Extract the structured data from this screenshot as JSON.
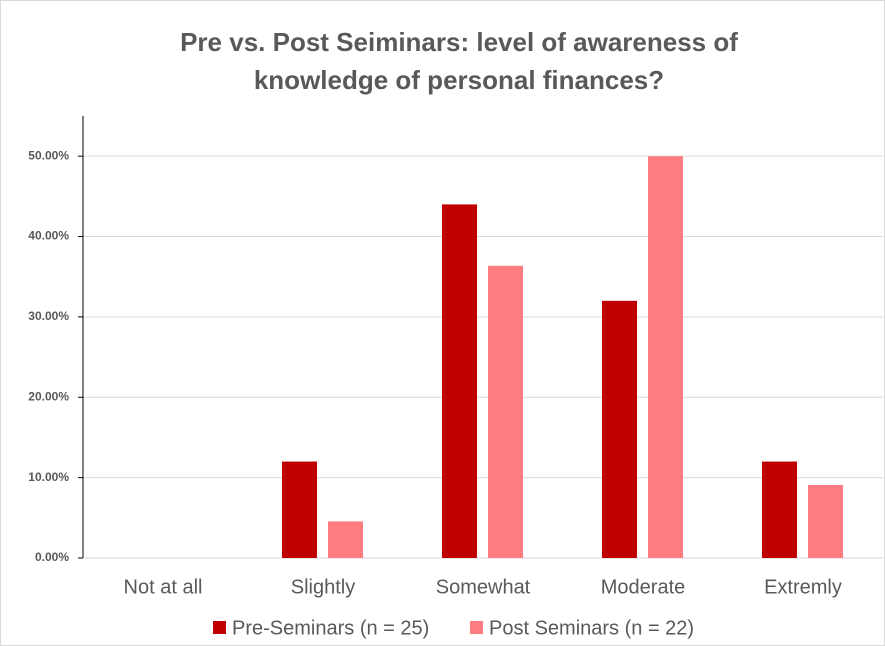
{
  "chart_data": {
    "type": "bar",
    "title": "Pre vs. Post Seiminars: level of awareness of knowledge of personal finances?",
    "categories": [
      "Not at all",
      "Slightly",
      "Somewhat",
      "Moderate",
      "Extremly"
    ],
    "series": [
      {
        "name": "Pre-Seminars (n = 25)",
        "color": "#c00000",
        "values": [
          0,
          12,
          44,
          32,
          12
        ]
      },
      {
        "name": "Post Seminars (n = 22)",
        "color": "#ff7c80",
        "values": [
          0,
          4.55,
          36.36,
          50,
          9.09
        ]
      }
    ],
    "ylim": [
      0,
      55
    ],
    "yticks": [
      {
        "value": 0,
        "label": "0.00%"
      },
      {
        "value": 10,
        "label": "10.00%"
      },
      {
        "value": 20,
        "label": "20.00%"
      },
      {
        "value": 30,
        "label": "30.00%"
      },
      {
        "value": 40,
        "label": "40.00%"
      },
      {
        "value": 50,
        "label": "50.00%"
      }
    ],
    "grid": true,
    "legend": "bottom"
  }
}
